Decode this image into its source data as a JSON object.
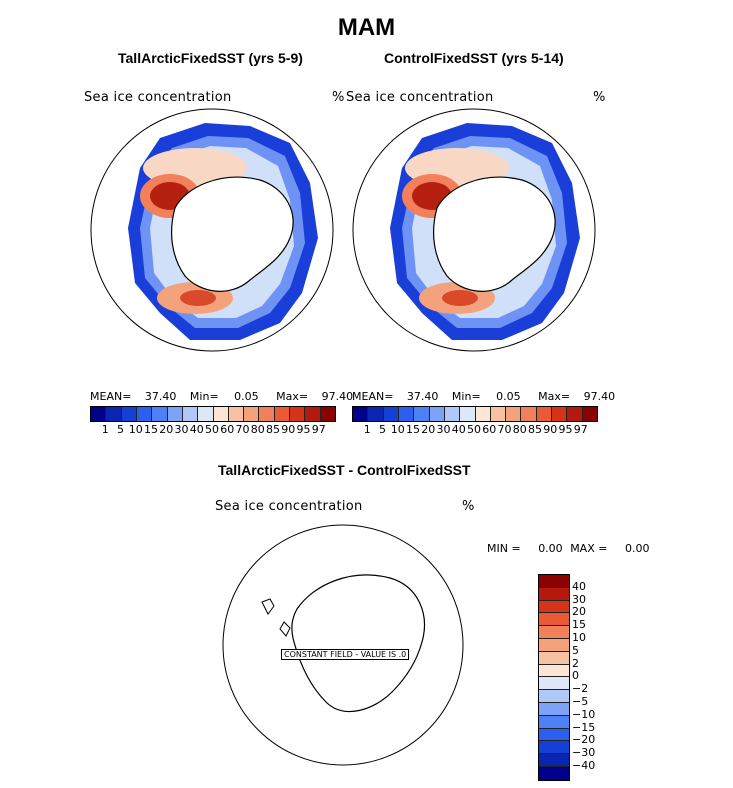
{
  "page": {
    "title": "MAM"
  },
  "panels": [
    {
      "title": "TallArcticFixedSST (yrs 5-9)",
      "field_label": "Sea ice concentration",
      "units": "%",
      "stats": {
        "mean_label": "MEAN=",
        "mean": "37.40",
        "min_label": "Min=",
        "min": "0.05",
        "max_label": "Max=",
        "max": "97.40"
      }
    },
    {
      "title": "ControlFixedSST (yrs 5-14)",
      "field_label": "Sea ice concentration",
      "units": "%",
      "stats": {
        "mean_label": "MEAN=",
        "mean": "37.40",
        "min_label": "Min=",
        "min": "0.05",
        "max_label": "Max=",
        "max": "97.40"
      }
    }
  ],
  "abs_colorbar": {
    "labels": [
      "1",
      "5",
      "10",
      "15",
      "20",
      "30",
      "40",
      "50",
      "60",
      "70",
      "80",
      "85",
      "90",
      "95",
      "97"
    ],
    "colors": [
      "#00008b",
      "#0a25b0",
      "#1440d8",
      "#2a5ff0",
      "#4d7ff5",
      "#7ea2f6",
      "#b0c8f8",
      "#dce8f8",
      "#fde4d3",
      "#f7c2a2",
      "#f4a27c",
      "#f2805a",
      "#e95a35",
      "#d63418",
      "#b5190b",
      "#8b0000"
    ]
  },
  "diff_panel": {
    "title": "TallArcticFixedSST - ControlFixedSST",
    "field_label": "Sea ice concentration",
    "units": "%",
    "minmax": {
      "min_label": "MIN =",
      "min": "0.00",
      "max_label": "MAX =",
      "max": "0.00"
    },
    "constant_field_note": "CONSTANT FIELD - VALUE IS .0"
  },
  "diff_colorbar": {
    "labels": [
      "40",
      "30",
      "20",
      "15",
      "10",
      "5",
      "2",
      "0",
      "−2",
      "−5",
      "−10",
      "−15",
      "−20",
      "−30",
      "−40"
    ],
    "colors": [
      "#8b0000",
      "#b5190b",
      "#d63418",
      "#e95a35",
      "#f2805a",
      "#f4a27c",
      "#f7c2a2",
      "#fde4d3",
      "#dce8f8",
      "#b0c8f8",
      "#7ea2f6",
      "#4d7ff5",
      "#2a5ff0",
      "#1440d8",
      "#0a25b0",
      "#00008b"
    ]
  },
  "map_colors": {
    "ice_edge": "#1a3fd8",
    "ice_mid": "#6e93f4",
    "ice_inner": "#cfe0f8",
    "ice_pale_red": "#f8d8c4",
    "weddell_core": "#b52010",
    "ross_core": "#d84a2a"
  }
}
